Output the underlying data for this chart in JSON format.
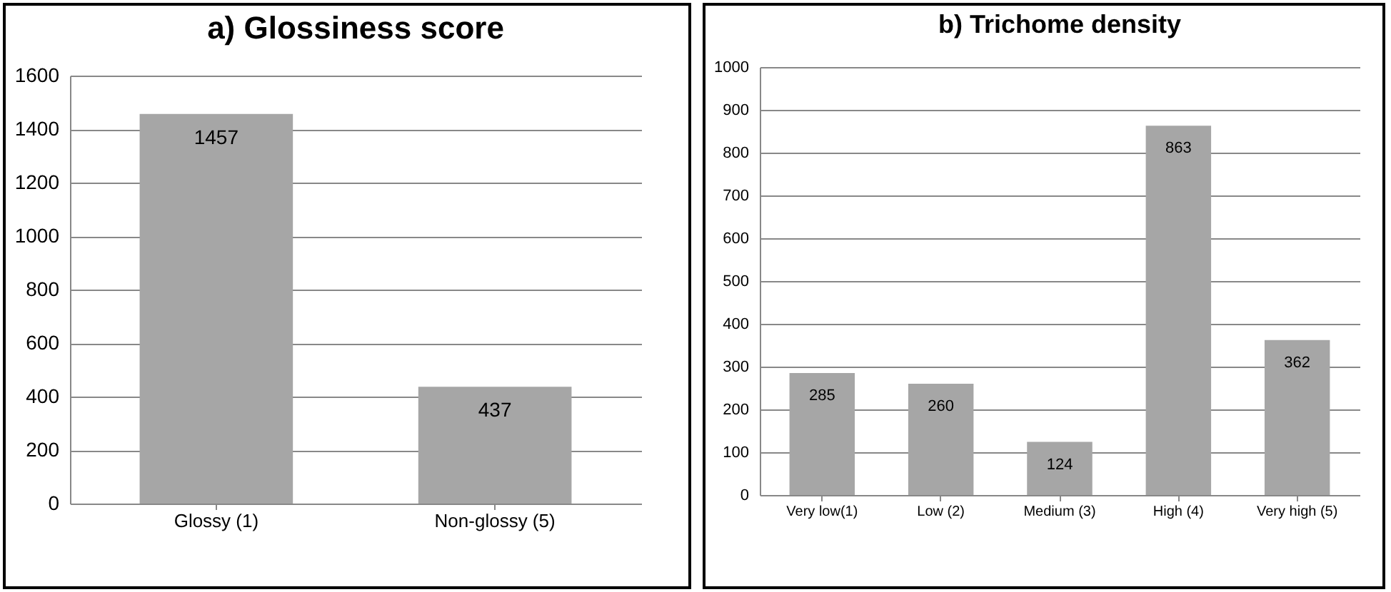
{
  "chart_data": [
    {
      "type": "bar",
      "title": "a) Glossiness score",
      "categories": [
        "Glossy (1)",
        "Non-glossy (5)"
      ],
      "values": [
        1457,
        437
      ],
      "color": "#a6a6a6",
      "ylim": [
        0,
        1600
      ],
      "yticks": [
        0,
        200,
        400,
        600,
        800,
        1000,
        1200,
        1400,
        1600
      ],
      "grid": "y",
      "data_labels": true
    },
    {
      "type": "bar",
      "title": "b) Trichome density",
      "categories": [
        "Very low(1)",
        "Low (2)",
        "Medium (3)",
        "High (4)",
        "Very high (5)"
      ],
      "values": [
        285,
        260,
        124,
        863,
        362
      ],
      "color": "#a6a6a6",
      "ylim": [
        0,
        1000
      ],
      "yticks": [
        0,
        100,
        200,
        300,
        400,
        500,
        600,
        700,
        800,
        900,
        1000
      ],
      "grid": "y",
      "data_labels": true
    }
  ]
}
